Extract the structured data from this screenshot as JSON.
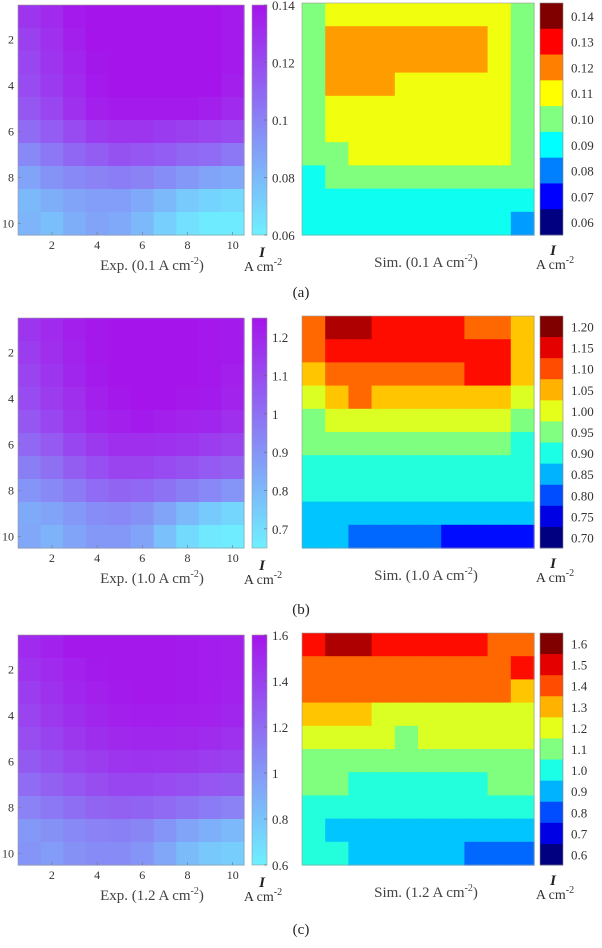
{
  "panels": [
    {
      "label": "(a)",
      "exp": {
        "caption": "Exp. (0.1 A cm",
        "caption_sup": "-2",
        "caption_end": ")",
        "xticks": [
          "2",
          "4",
          "6",
          "8",
          "10"
        ],
        "yticks": [
          "2",
          "4",
          "6",
          "8",
          "10"
        ],
        "colorbar_ticks": [
          "0.14",
          "0.12",
          "0.1",
          "0.08",
          "0.06"
        ],
        "colorbar_range": [
          0.06,
          0.14
        ],
        "var_label": "I",
        "unit_label": "A cm",
        "unit_sup": "-2"
      },
      "sim": {
        "caption": "Sim. (0.1 A cm",
        "caption_sup": "-2",
        "caption_end": ")",
        "colorbar_levels": [
          "0.14",
          "0.13",
          "0.12",
          "0.11",
          "0.10",
          "0.09",
          "0.08",
          "0.07",
          "0.06"
        ],
        "var_label": "I",
        "unit_label": "A cm",
        "unit_sup": "-2"
      }
    },
    {
      "label": "(b)",
      "exp": {
        "caption": "Exp. (1.0 A cm",
        "caption_sup": "-2",
        "caption_end": ")",
        "xticks": [
          "2",
          "4",
          "6",
          "8",
          "10"
        ],
        "yticks": [
          "2",
          "4",
          "6",
          "8",
          "10"
        ],
        "colorbar_ticks": [
          "1.2",
          "1.1",
          "1",
          "0.9",
          "0.8",
          "0.7"
        ],
        "colorbar_range": [
          0.65,
          1.25
        ],
        "var_label": "I",
        "unit_label": "A cm",
        "unit_sup": "-2"
      },
      "sim": {
        "caption": "Sim. (1.0 A cm",
        "caption_sup": "-2",
        "caption_end": ")",
        "colorbar_levels": [
          "1.20",
          "1.15",
          "1.10",
          "1.05",
          "1.00",
          "0.95",
          "0.90",
          "0.85",
          "0.80",
          "0.75",
          "0.70"
        ],
        "var_label": "I",
        "unit_label": "A cm",
        "unit_sup": "-2"
      }
    },
    {
      "label": "(c)",
      "exp": {
        "caption": "Exp. (1.2 A cm",
        "caption_sup": "-2",
        "caption_end": ")",
        "xticks": [
          "2",
          "4",
          "6",
          "8",
          "10"
        ],
        "yticks": [
          "2",
          "4",
          "6",
          "8",
          "10"
        ],
        "colorbar_ticks": [
          "1.6",
          "1.4",
          "1.2",
          "1",
          "0.8",
          "0.6"
        ],
        "colorbar_range": [
          0.6,
          1.6
        ],
        "var_label": "I",
        "unit_label": "A cm",
        "unit_sup": "-2"
      },
      "sim": {
        "caption": "Sim. (1.2 A cm",
        "caption_sup": "-2",
        "caption_end": ")",
        "colorbar_levels": [
          "1.6",
          "1.5",
          "1.4",
          "1.3",
          "1.2",
          "1.1",
          "1.0",
          "0.9",
          "0.8",
          "0.7",
          "0.6"
        ],
        "var_label": "I",
        "unit_label": "A cm",
        "unit_sup": "-2"
      }
    }
  ],
  "chart_data": [
    {
      "type": "heatmap",
      "title": "Exp. (0.1 A cm-2)",
      "x": [
        1,
        2,
        3,
        4,
        5,
        6,
        7,
        8,
        9,
        10
      ],
      "y": [
        1,
        2,
        3,
        4,
        5,
        6,
        7,
        8,
        9,
        10
      ],
      "zlim": [
        0.06,
        0.14
      ],
      "colormap": "cool",
      "values": [
        [
          0.128,
          0.132,
          0.138,
          0.14,
          0.14,
          0.14,
          0.14,
          0.14,
          0.14,
          0.138
        ],
        [
          0.124,
          0.13,
          0.136,
          0.14,
          0.14,
          0.14,
          0.14,
          0.14,
          0.14,
          0.138
        ],
        [
          0.122,
          0.128,
          0.134,
          0.139,
          0.14,
          0.14,
          0.14,
          0.14,
          0.14,
          0.138
        ],
        [
          0.12,
          0.126,
          0.132,
          0.138,
          0.14,
          0.14,
          0.14,
          0.14,
          0.14,
          0.136
        ],
        [
          0.116,
          0.122,
          0.13,
          0.136,
          0.138,
          0.138,
          0.138,
          0.138,
          0.136,
          0.132
        ],
        [
          0.108,
          0.114,
          0.12,
          0.126,
          0.128,
          0.128,
          0.126,
          0.124,
          0.122,
          0.12
        ],
        [
          0.098,
          0.104,
          0.11,
          0.114,
          0.118,
          0.116,
          0.114,
          0.11,
          0.108,
          0.104
        ],
        [
          0.088,
          0.094,
          0.098,
          0.1,
          0.102,
          0.1,
          0.096,
          0.092,
          0.088,
          0.086
        ],
        [
          0.08,
          0.084,
          0.088,
          0.09,
          0.09,
          0.086,
          0.08,
          0.074,
          0.07,
          0.068
        ],
        [
          0.082,
          0.078,
          0.084,
          0.088,
          0.086,
          0.08,
          0.072,
          0.066,
          0.062,
          0.062
        ]
      ]
    },
    {
      "type": "heatmap",
      "title": "Sim. (0.1 A cm-2)",
      "x": [
        1,
        2,
        3,
        4,
        5,
        6,
        7,
        8,
        9,
        10
      ],
      "y": [
        1,
        2,
        3,
        4,
        5,
        6,
        7,
        8,
        9,
        10
      ],
      "zlim": [
        0.055,
        0.145
      ],
      "colormap": "jet",
      "values": [
        [
          0.1,
          0.11,
          0.11,
          0.11,
          0.11,
          0.11,
          0.11,
          0.11,
          0.11,
          0.1
        ],
        [
          0.1,
          0.12,
          0.12,
          0.12,
          0.12,
          0.12,
          0.12,
          0.12,
          0.11,
          0.1
        ],
        [
          0.1,
          0.12,
          0.12,
          0.12,
          0.12,
          0.12,
          0.12,
          0.12,
          0.11,
          0.1
        ],
        [
          0.1,
          0.12,
          0.12,
          0.12,
          0.11,
          0.11,
          0.11,
          0.11,
          0.11,
          0.1
        ],
        [
          0.1,
          0.11,
          0.11,
          0.11,
          0.11,
          0.11,
          0.11,
          0.11,
          0.11,
          0.1
        ],
        [
          0.1,
          0.11,
          0.11,
          0.11,
          0.11,
          0.11,
          0.11,
          0.11,
          0.11,
          0.1
        ],
        [
          0.1,
          0.1,
          0.11,
          0.11,
          0.11,
          0.11,
          0.11,
          0.11,
          0.11,
          0.1
        ],
        [
          0.09,
          0.1,
          0.1,
          0.1,
          0.1,
          0.1,
          0.1,
          0.1,
          0.1,
          0.1
        ],
        [
          0.09,
          0.09,
          0.09,
          0.09,
          0.09,
          0.09,
          0.09,
          0.09,
          0.09,
          0.09
        ],
        [
          0.09,
          0.09,
          0.09,
          0.09,
          0.09,
          0.09,
          0.09,
          0.09,
          0.09,
          0.08
        ]
      ]
    },
    {
      "type": "heatmap",
      "title": "Exp. (1.0 A cm-2)",
      "x": [
        1,
        2,
        3,
        4,
        5,
        6,
        7,
        8,
        9,
        10
      ],
      "y": [
        1,
        2,
        3,
        4,
        5,
        6,
        7,
        8,
        9,
        10
      ],
      "zlim": [
        0.65,
        1.25
      ],
      "colormap": "cool",
      "values": [
        [
          1.16,
          1.19,
          1.22,
          1.24,
          1.25,
          1.25,
          1.25,
          1.25,
          1.24,
          1.23
        ],
        [
          1.14,
          1.18,
          1.21,
          1.24,
          1.25,
          1.25,
          1.25,
          1.25,
          1.24,
          1.23
        ],
        [
          1.12,
          1.16,
          1.2,
          1.23,
          1.25,
          1.25,
          1.25,
          1.25,
          1.24,
          1.22
        ],
        [
          1.1,
          1.14,
          1.18,
          1.22,
          1.24,
          1.25,
          1.25,
          1.24,
          1.23,
          1.21
        ],
        [
          1.07,
          1.11,
          1.16,
          1.2,
          1.22,
          1.23,
          1.22,
          1.21,
          1.2,
          1.18
        ],
        [
          1.02,
          1.06,
          1.11,
          1.15,
          1.18,
          1.18,
          1.17,
          1.16,
          1.14,
          1.12
        ],
        [
          0.96,
          1.0,
          1.05,
          1.09,
          1.12,
          1.12,
          1.1,
          1.08,
          1.06,
          1.04
        ],
        [
          0.9,
          0.93,
          0.97,
          1.01,
          1.03,
          1.02,
          0.99,
          0.96,
          0.93,
          0.9
        ],
        [
          0.84,
          0.86,
          0.89,
          0.92,
          0.93,
          0.91,
          0.86,
          0.8,
          0.75,
          0.72
        ],
        [
          0.85,
          0.82,
          0.86,
          0.89,
          0.89,
          0.86,
          0.78,
          0.71,
          0.67,
          0.66
        ]
      ]
    },
    {
      "type": "heatmap",
      "title": "Sim. (1.0 A cm-2)",
      "x": [
        1,
        2,
        3,
        4,
        5,
        6,
        7,
        8,
        9,
        10
      ],
      "y": [
        1,
        2,
        3,
        4,
        5,
        6,
        7,
        8,
        9,
        10
      ],
      "zlim": [
        0.675,
        1.225
      ],
      "colormap": "jet",
      "values": [
        [
          1.1,
          1.2,
          1.2,
          1.15,
          1.15,
          1.15,
          1.15,
          1.1,
          1.1,
          1.05
        ],
        [
          1.1,
          1.15,
          1.15,
          1.15,
          1.15,
          1.15,
          1.15,
          1.15,
          1.15,
          1.05
        ],
        [
          1.05,
          1.1,
          1.1,
          1.1,
          1.1,
          1.1,
          1.1,
          1.15,
          1.15,
          1.05
        ],
        [
          1.0,
          1.05,
          1.1,
          1.05,
          1.05,
          1.05,
          1.05,
          1.05,
          1.05,
          1.0
        ],
        [
          0.95,
          1.0,
          1.0,
          1.0,
          1.0,
          1.0,
          1.0,
          1.0,
          1.0,
          0.95
        ],
        [
          0.95,
          0.95,
          0.95,
          0.95,
          0.95,
          0.95,
          0.95,
          0.95,
          0.95,
          0.9
        ],
        [
          0.9,
          0.9,
          0.9,
          0.9,
          0.9,
          0.9,
          0.9,
          0.9,
          0.9,
          0.9
        ],
        [
          0.9,
          0.9,
          0.9,
          0.9,
          0.9,
          0.9,
          0.9,
          0.9,
          0.9,
          0.9
        ],
        [
          0.85,
          0.85,
          0.85,
          0.85,
          0.85,
          0.85,
          0.85,
          0.85,
          0.85,
          0.85
        ],
        [
          0.85,
          0.85,
          0.8,
          0.8,
          0.8,
          0.8,
          0.75,
          0.75,
          0.75,
          0.75
        ]
      ]
    },
    {
      "type": "heatmap",
      "title": "Exp. (1.2 A cm-2)",
      "x": [
        1,
        2,
        3,
        4,
        5,
        6,
        7,
        8,
        9,
        10
      ],
      "y": [
        1,
        2,
        3,
        4,
        5,
        6,
        7,
        8,
        9,
        10
      ],
      "zlim": [
        0.6,
        1.6
      ],
      "colormap": "cool",
      "values": [
        [
          1.5,
          1.54,
          1.58,
          1.58,
          1.58,
          1.58,
          1.58,
          1.57,
          1.56,
          1.55
        ],
        [
          1.46,
          1.5,
          1.54,
          1.57,
          1.58,
          1.58,
          1.58,
          1.57,
          1.56,
          1.55
        ],
        [
          1.42,
          1.47,
          1.52,
          1.55,
          1.57,
          1.58,
          1.58,
          1.57,
          1.56,
          1.54
        ],
        [
          1.38,
          1.43,
          1.48,
          1.52,
          1.55,
          1.56,
          1.56,
          1.55,
          1.54,
          1.52
        ],
        [
          1.34,
          1.39,
          1.44,
          1.48,
          1.51,
          1.52,
          1.52,
          1.51,
          1.49,
          1.47
        ],
        [
          1.28,
          1.33,
          1.38,
          1.42,
          1.45,
          1.46,
          1.45,
          1.44,
          1.42,
          1.4
        ],
        [
          1.2,
          1.25,
          1.3,
          1.34,
          1.37,
          1.37,
          1.35,
          1.33,
          1.3,
          1.28
        ],
        [
          1.1,
          1.15,
          1.19,
          1.23,
          1.25,
          1.24,
          1.21,
          1.17,
          1.13,
          1.1
        ],
        [
          1.0,
          1.03,
          1.07,
          1.1,
          1.11,
          1.08,
          1.02,
          0.95,
          0.89,
          0.85
        ],
        [
          1.02,
          0.98,
          1.03,
          1.06,
          1.06,
          1.02,
          0.93,
          0.84,
          0.78,
          0.76
        ]
      ]
    },
    {
      "type": "heatmap",
      "title": "Sim. (1.2 A cm-2)",
      "x": [
        1,
        2,
        3,
        4,
        5,
        6,
        7,
        8,
        9,
        10
      ],
      "y": [
        1,
        2,
        3,
        4,
        5,
        6,
        7,
        8,
        9,
        10
      ],
      "zlim": [
        0.55,
        1.65
      ],
      "colormap": "jet",
      "values": [
        [
          1.5,
          1.6,
          1.6,
          1.5,
          1.5,
          1.5,
          1.5,
          1.5,
          1.4,
          1.4
        ],
        [
          1.4,
          1.4,
          1.4,
          1.4,
          1.4,
          1.4,
          1.4,
          1.4,
          1.4,
          1.5
        ],
        [
          1.4,
          1.4,
          1.4,
          1.4,
          1.4,
          1.4,
          1.4,
          1.4,
          1.4,
          1.3
        ],
        [
          1.3,
          1.3,
          1.3,
          1.2,
          1.2,
          1.2,
          1.2,
          1.2,
          1.2,
          1.2
        ],
        [
          1.2,
          1.2,
          1.2,
          1.2,
          1.1,
          1.2,
          1.2,
          1.2,
          1.2,
          1.2
        ],
        [
          1.1,
          1.1,
          1.1,
          1.1,
          1.1,
          1.1,
          1.1,
          1.1,
          1.1,
          1.1
        ],
        [
          1.1,
          1.1,
          1.0,
          1.0,
          1.0,
          1.0,
          1.0,
          1.0,
          1.1,
          1.1
        ],
        [
          1.0,
          1.0,
          1.0,
          1.0,
          1.0,
          1.0,
          1.0,
          1.0,
          1.0,
          1.0
        ],
        [
          1.0,
          0.9,
          0.9,
          0.9,
          0.9,
          0.9,
          0.9,
          0.9,
          0.9,
          0.9
        ],
        [
          1.0,
          1.0,
          0.9,
          0.9,
          0.9,
          0.9,
          0.9,
          0.8,
          0.8,
          0.8
        ]
      ]
    }
  ]
}
